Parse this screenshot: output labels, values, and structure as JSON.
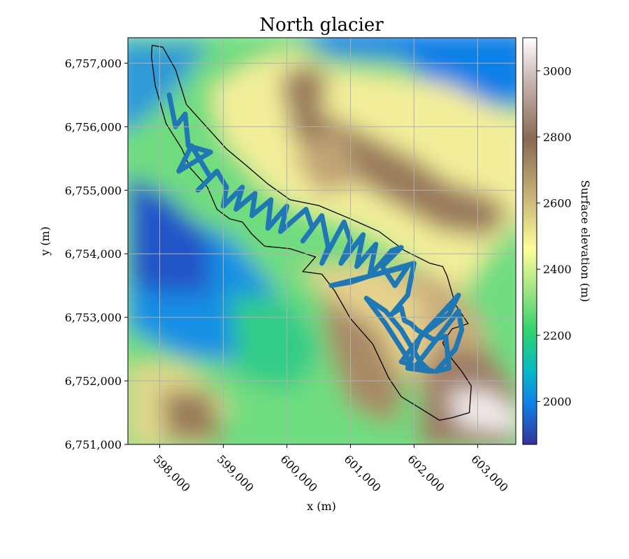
{
  "chart_data": {
    "type": "heatmap",
    "title": "North glacier",
    "xlabel": "x (m)",
    "ylabel": "y (m)",
    "xlim": [
      597500,
      603600
    ],
    "ylim": [
      6751000,
      6757400
    ],
    "x_ticks": [
      598000,
      599000,
      600000,
      601000,
      602000,
      603000
    ],
    "x_tick_labels": [
      "598,000",
      "599,000",
      "600,000",
      "601,000",
      "602,000",
      "603,000"
    ],
    "y_ticks": [
      6751000,
      6752000,
      6753000,
      6754000,
      6755000,
      6756000,
      6757000
    ],
    "y_tick_labels": [
      "6,751,000",
      "6,752,000",
      "6,753,000",
      "6,754,000",
      "6,755,000",
      "6,756,000",
      "6,757,000"
    ],
    "grid": true,
    "colormap": "terrain",
    "colorbar": {
      "label": "Surface elevation (m)",
      "range": [
        1870,
        3100
      ],
      "ticks": [
        2000,
        2200,
        2400,
        2600,
        2800,
        3000
      ],
      "tick_labels": [
        "2000",
        "2200",
        "2400",
        "2600",
        "2800",
        "3000"
      ]
    },
    "glacier_outline": {
      "color": "#000000",
      "points": [
        [
          597880,
          6757280
        ],
        [
          598050,
          6757250
        ],
        [
          598250,
          6756900
        ],
        [
          598420,
          6756350
        ],
        [
          598780,
          6755950
        ],
        [
          599050,
          6755650
        ],
        [
          599350,
          6755400
        ],
        [
          599700,
          6755100
        ],
        [
          600050,
          6754850
        ],
        [
          600500,
          6754760
        ],
        [
          601000,
          6754550
        ],
        [
          601450,
          6754350
        ],
        [
          601850,
          6754050
        ],
        [
          602250,
          6753850
        ],
        [
          602450,
          6753800
        ],
        [
          602520,
          6753650
        ],
        [
          602650,
          6753200
        ],
        [
          602850,
          6752900
        ],
        [
          602600,
          6752820
        ],
        [
          602450,
          6752600
        ],
        [
          602550,
          6752400
        ],
        [
          602750,
          6752150
        ],
        [
          602900,
          6751920
        ],
        [
          602870,
          6751500
        ],
        [
          602600,
          6751420
        ],
        [
          602400,
          6751380
        ],
        [
          602080,
          6751580
        ],
        [
          601800,
          6751750
        ],
        [
          601600,
          6752050
        ],
        [
          601350,
          6752580
        ],
        [
          601000,
          6752980
        ],
        [
          600750,
          6753420
        ],
        [
          600550,
          6753680
        ],
        [
          600250,
          6753720
        ],
        [
          600450,
          6753950
        ],
        [
          600050,
          6754080
        ],
        [
          599650,
          6754120
        ],
        [
          599450,
          6754310
        ],
        [
          599300,
          6754500
        ],
        [
          599100,
          6754550
        ],
        [
          598900,
          6754700
        ],
        [
          598750,
          6755050
        ],
        [
          598480,
          6755350
        ],
        [
          598350,
          6755650
        ],
        [
          598100,
          6756050
        ],
        [
          597930,
          6756650
        ],
        [
          597870,
          6757100
        ]
      ]
    },
    "series": [
      {
        "color": "#1f77b4",
        "points": [
          [
            598150,
            6756500
          ],
          [
            598250,
            6756000
          ],
          [
            598400,
            6756200
          ],
          [
            598450,
            6755700
          ],
          [
            598800,
            6755600
          ],
          [
            598300,
            6755300
          ],
          [
            598500,
            6755700
          ],
          [
            598650,
            6755450
          ],
          [
            598800,
            6755200
          ],
          [
            598600,
            6755000
          ],
          [
            598900,
            6755300
          ],
          [
            599050,
            6755050
          ],
          [
            599000,
            6754750
          ],
          [
            599300,
            6755050
          ],
          [
            599200,
            6754700
          ],
          [
            599500,
            6754950
          ],
          [
            599450,
            6754600
          ],
          [
            599750,
            6754850
          ],
          [
            599700,
            6754400
          ],
          [
            600000,
            6754750
          ],
          [
            599900,
            6754350
          ],
          [
            600300,
            6754700
          ],
          [
            600400,
            6754400
          ],
          [
            600250,
            6754200
          ],
          [
            600550,
            6754600
          ],
          [
            600650,
            6754100
          ],
          [
            600550,
            6753850
          ],
          [
            600900,
            6754500
          ],
          [
            601000,
            6754200
          ],
          [
            600850,
            6753850
          ],
          [
            601200,
            6754300
          ],
          [
            601100,
            6753800
          ],
          [
            601400,
            6754150
          ],
          [
            601300,
            6753650
          ],
          [
            601650,
            6754050
          ],
          [
            601800,
            6754100
          ],
          [
            601500,
            6753800
          ],
          [
            601700,
            6753500
          ],
          [
            601900,
            6753800
          ],
          [
            600700,
            6753500
          ],
          [
            601000,
            6753550
          ],
          [
            601300,
            6753650
          ],
          [
            602000,
            6753850
          ],
          [
            601900,
            6753350
          ],
          [
            601650,
            6753050
          ],
          [
            601800,
            6753150
          ],
          [
            601850,
            6752950
          ],
          [
            601950,
            6752900
          ],
          [
            602050,
            6752800
          ],
          [
            602300,
            6752650
          ],
          [
            602500,
            6752700
          ],
          [
            602550,
            6752200
          ],
          [
            602350,
            6752150
          ],
          [
            602650,
            6752500
          ],
          [
            602750,
            6752800
          ],
          [
            602700,
            6753100
          ],
          [
            602000,
            6752200
          ],
          [
            601550,
            6752900
          ],
          [
            601250,
            6753300
          ],
          [
            601550,
            6753100
          ],
          [
            601800,
            6752800
          ],
          [
            602100,
            6752300
          ],
          [
            602250,
            6752150
          ],
          [
            601900,
            6752200
          ],
          [
            602100,
            6752700
          ],
          [
            602550,
            6753050
          ],
          [
            602700,
            6753350
          ],
          [
            602150,
            6752750
          ],
          [
            601950,
            6752500
          ],
          [
            601800,
            6752300
          ],
          [
            602300,
            6752150
          ]
        ]
      }
    ]
  }
}
